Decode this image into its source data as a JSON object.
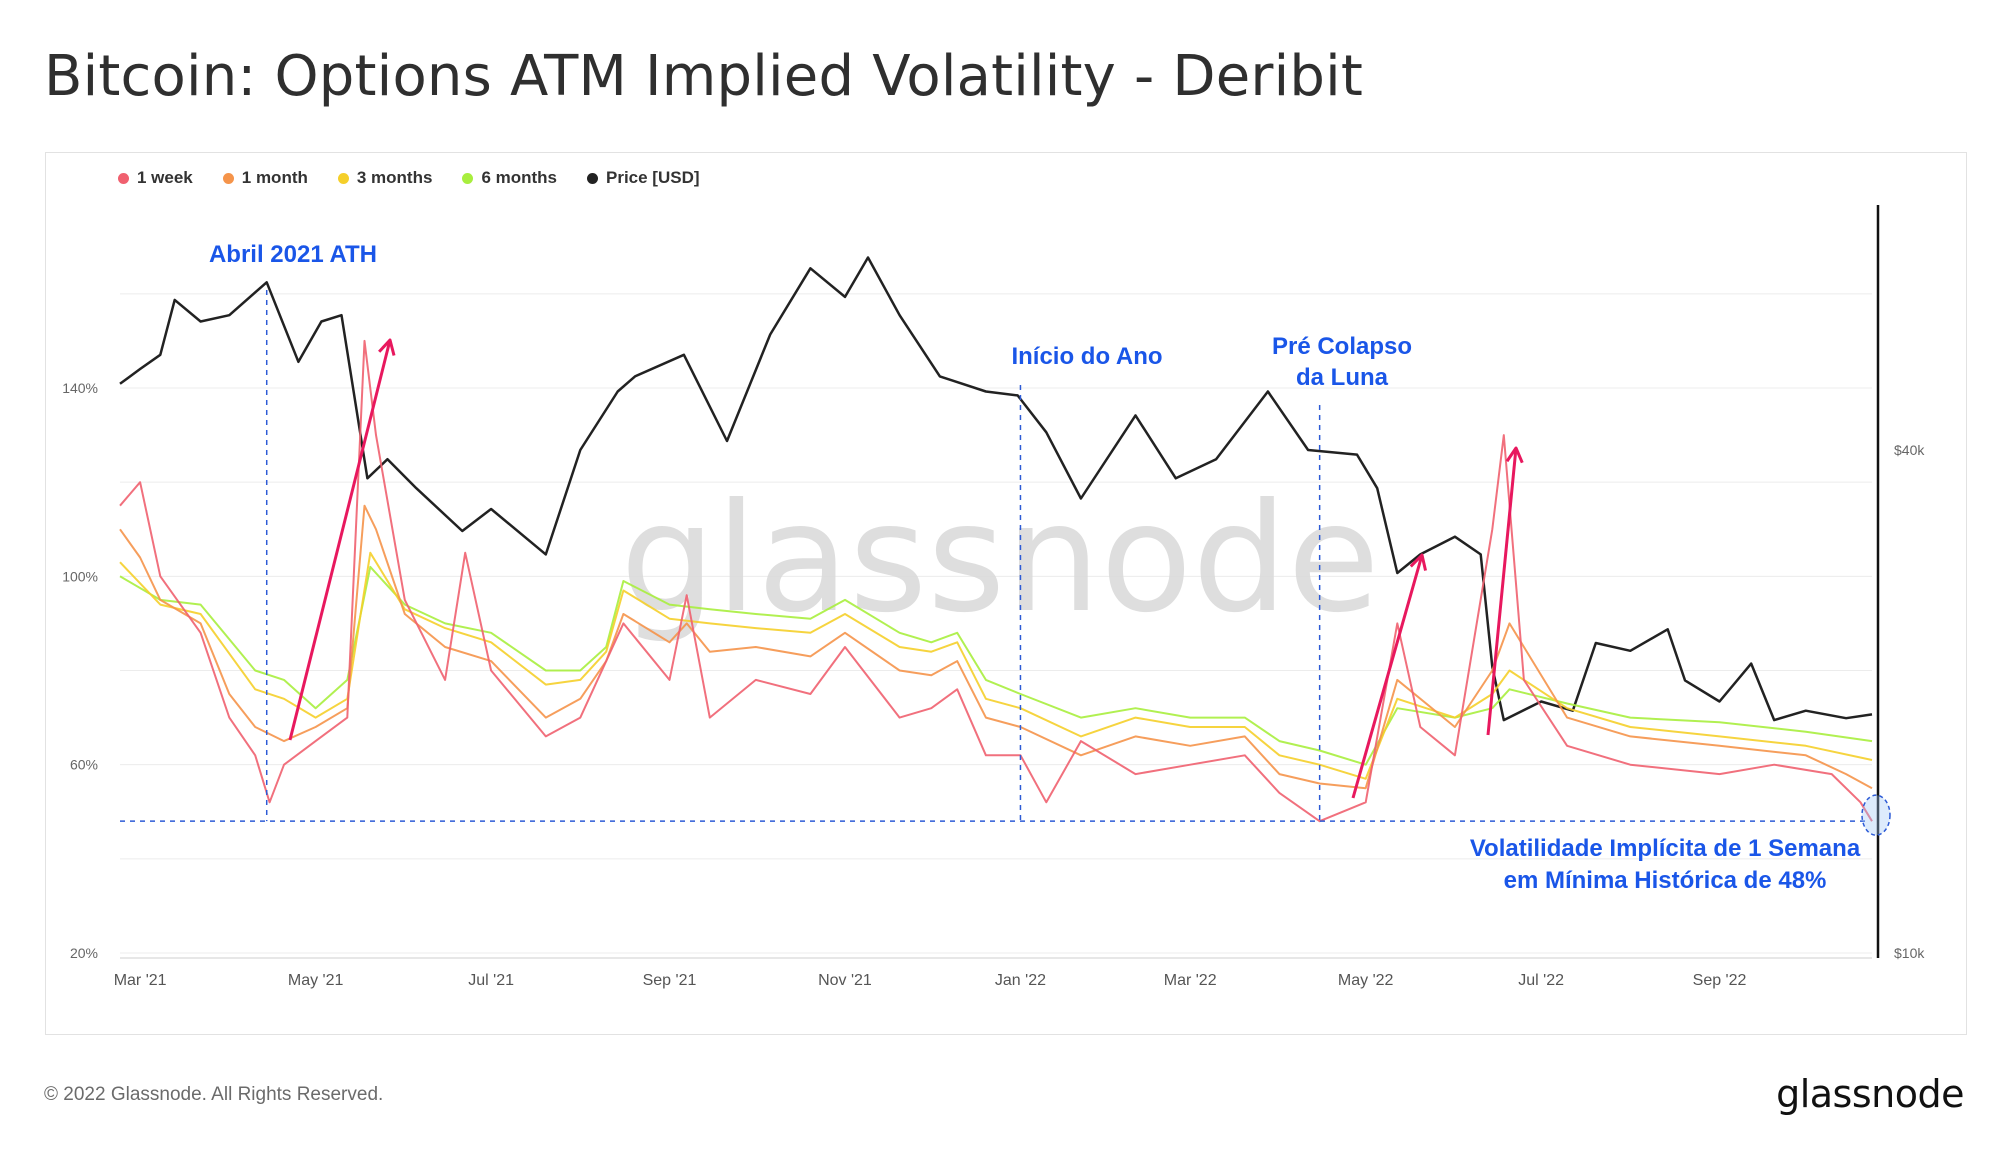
{
  "title": "Bitcoin: Options ATM Implied Volatility - Deribit",
  "footer": {
    "copyright": "© 2022 Glassnode. All Rights Reserved.",
    "logo": "glassnode"
  },
  "watermark": "glassnode",
  "chart_data": {
    "type": "line",
    "legend": [
      {
        "name": "1 week",
        "color": "#f0606f"
      },
      {
        "name": "1 month",
        "color": "#f5944a"
      },
      {
        "name": "3 months",
        "color": "#f5cf2a"
      },
      {
        "name": "6 months",
        "color": "#a8ee3e"
      },
      {
        "name": "Price [USD]",
        "color": "#222222"
      }
    ],
    "left_axis": {
      "ticks": [
        "140%",
        "100%",
        "60%",
        "20%"
      ],
      "values": [
        140,
        100,
        60,
        20
      ],
      "range": [
        20,
        160
      ]
    },
    "right_axis": {
      "ticks": [
        "$40k",
        "$10k"
      ],
      "scale": "log"
    },
    "x_ticks": [
      "Mar '21",
      "May '21",
      "Jul '21",
      "Sep '21",
      "Nov '21",
      "Jan '22",
      "Mar '22",
      "May '22",
      "Jul '22",
      "Sep '22"
    ],
    "x_range": [
      "2021-02-22",
      "2022-10-24"
    ],
    "series": [
      {
        "name": "Price [USD]",
        "color": "#222222",
        "points": [
          [
            "2021-02-22",
            48000
          ],
          [
            "2021-03-01",
            50000
          ],
          [
            "2021-03-08",
            52000
          ],
          [
            "2021-03-13",
            60500
          ],
          [
            "2021-03-22",
            57000
          ],
          [
            "2021-04-01",
            58000
          ],
          [
            "2021-04-14",
            63500
          ],
          [
            "2021-04-25",
            51000
          ],
          [
            "2021-05-03",
            57000
          ],
          [
            "2021-05-10",
            58000
          ],
          [
            "2021-05-19",
            37000
          ],
          [
            "2021-05-26",
            39000
          ],
          [
            "2021-06-05",
            36000
          ],
          [
            "2021-06-21",
            32000
          ],
          [
            "2021-07-01",
            34000
          ],
          [
            "2021-07-20",
            30000
          ],
          [
            "2021-08-01",
            40000
          ],
          [
            "2021-08-14",
            47000
          ],
          [
            "2021-08-20",
            49000
          ],
          [
            "2021-09-06",
            52000
          ],
          [
            "2021-09-21",
            41000
          ],
          [
            "2021-10-06",
            55000
          ],
          [
            "2021-10-20",
            66000
          ],
          [
            "2021-11-01",
            61000
          ],
          [
            "2021-11-09",
            68000
          ],
          [
            "2021-11-20",
            58000
          ],
          [
            "2021-12-04",
            49000
          ],
          [
            "2021-12-20",
            47000
          ],
          [
            "2021-12-31",
            46500
          ],
          [
            "2022-01-10",
            42000
          ],
          [
            "2022-01-22",
            35000
          ],
          [
            "2022-02-10",
            44000
          ],
          [
            "2022-02-24",
            37000
          ],
          [
            "2022-03-10",
            39000
          ],
          [
            "2022-03-28",
            47000
          ],
          [
            "2022-04-11",
            40000
          ],
          [
            "2022-04-28",
            39500
          ],
          [
            "2022-05-05",
            36000
          ],
          [
            "2022-05-12",
            28500
          ],
          [
            "2022-05-20",
            30000
          ],
          [
            "2022-06-01",
            31500
          ],
          [
            "2022-06-10",
            30000
          ],
          [
            "2022-06-14",
            22000
          ],
          [
            "2022-06-18",
            19000
          ],
          [
            "2022-07-01",
            20000
          ],
          [
            "2022-07-12",
            19500
          ],
          [
            "2022-07-20",
            23500
          ],
          [
            "2022-08-01",
            23000
          ],
          [
            "2022-08-14",
            24400
          ],
          [
            "2022-08-20",
            21200
          ],
          [
            "2022-09-01",
            20000
          ],
          [
            "2022-09-12",
            22200
          ],
          [
            "2022-09-20",
            19000
          ],
          [
            "2022-10-01",
            19500
          ],
          [
            "2022-10-15",
            19100
          ],
          [
            "2022-10-24",
            19300
          ]
        ]
      },
      {
        "name": "6 months",
        "color": "#a8ee3e",
        "points": [
          [
            "2021-02-22",
            100
          ],
          [
            "2021-03-08",
            95
          ],
          [
            "2021-03-22",
            94
          ],
          [
            "2021-04-10",
            80
          ],
          [
            "2021-04-20",
            78
          ],
          [
            "2021-05-01",
            72
          ],
          [
            "2021-05-12",
            78
          ],
          [
            "2021-05-20",
            102
          ],
          [
            "2021-06-01",
            94
          ],
          [
            "2021-06-15",
            90
          ],
          [
            "2021-07-01",
            88
          ],
          [
            "2021-07-20",
            80
          ],
          [
            "2021-08-01",
            80
          ],
          [
            "2021-08-10",
            85
          ],
          [
            "2021-08-16",
            99
          ],
          [
            "2021-09-01",
            94
          ],
          [
            "2021-09-15",
            93
          ],
          [
            "2021-10-01",
            92
          ],
          [
            "2021-10-20",
            91
          ],
          [
            "2021-11-01",
            95
          ],
          [
            "2021-11-20",
            88
          ],
          [
            "2021-12-01",
            86
          ],
          [
            "2021-12-10",
            88
          ],
          [
            "2021-12-20",
            78
          ],
          [
            "2022-01-01",
            75
          ],
          [
            "2022-01-22",
            70
          ],
          [
            "2022-02-10",
            72
          ],
          [
            "2022-03-01",
            70
          ],
          [
            "2022-03-20",
            70
          ],
          [
            "2022-04-01",
            65
          ],
          [
            "2022-04-15",
            63
          ],
          [
            "2022-05-01",
            60
          ],
          [
            "2022-05-12",
            72
          ],
          [
            "2022-06-01",
            70
          ],
          [
            "2022-06-14",
            72
          ],
          [
            "2022-06-20",
            76
          ],
          [
            "2022-07-10",
            73
          ],
          [
            "2022-08-01",
            70
          ],
          [
            "2022-09-01",
            69
          ],
          [
            "2022-10-01",
            67
          ],
          [
            "2022-10-24",
            65
          ]
        ]
      },
      {
        "name": "3 months",
        "color": "#f5cf2a",
        "points": [
          [
            "2021-02-22",
            103
          ],
          [
            "2021-03-08",
            94
          ],
          [
            "2021-03-22",
            92
          ],
          [
            "2021-04-10",
            76
          ],
          [
            "2021-04-20",
            74
          ],
          [
            "2021-05-01",
            70
          ],
          [
            "2021-05-12",
            74
          ],
          [
            "2021-05-20",
            105
          ],
          [
            "2021-06-01",
            93
          ],
          [
            "2021-06-15",
            89
          ],
          [
            "2021-07-01",
            86
          ],
          [
            "2021-07-20",
            77
          ],
          [
            "2021-08-01",
            78
          ],
          [
            "2021-08-10",
            84
          ],
          [
            "2021-08-16",
            97
          ],
          [
            "2021-09-01",
            91
          ],
          [
            "2021-09-15",
            90
          ],
          [
            "2021-10-01",
            89
          ],
          [
            "2021-10-20",
            88
          ],
          [
            "2021-11-01",
            92
          ],
          [
            "2021-11-20",
            85
          ],
          [
            "2021-12-01",
            84
          ],
          [
            "2021-12-10",
            86
          ],
          [
            "2021-12-20",
            74
          ],
          [
            "2022-01-01",
            72
          ],
          [
            "2022-01-22",
            66
          ],
          [
            "2022-02-10",
            70
          ],
          [
            "2022-03-01",
            68
          ],
          [
            "2022-03-20",
            68
          ],
          [
            "2022-04-01",
            62
          ],
          [
            "2022-04-15",
            60
          ],
          [
            "2022-05-01",
            57
          ],
          [
            "2022-05-12",
            74
          ],
          [
            "2022-06-01",
            70
          ],
          [
            "2022-06-14",
            75
          ],
          [
            "2022-06-20",
            80
          ],
          [
            "2022-07-10",
            72
          ],
          [
            "2022-08-01",
            68
          ],
          [
            "2022-09-01",
            66
          ],
          [
            "2022-10-01",
            64
          ],
          [
            "2022-10-24",
            61
          ]
        ]
      },
      {
        "name": "1 month",
        "color": "#f5944a",
        "points": [
          [
            "2021-02-22",
            110
          ],
          [
            "2021-03-01",
            104
          ],
          [
            "2021-03-08",
            95
          ],
          [
            "2021-03-22",
            90
          ],
          [
            "2021-04-01",
            75
          ],
          [
            "2021-04-10",
            68
          ],
          [
            "2021-04-20",
            65
          ],
          [
            "2021-05-01",
            68
          ],
          [
            "2021-05-12",
            72
          ],
          [
            "2021-05-18",
            115
          ],
          [
            "2021-05-22",
            110
          ],
          [
            "2021-06-01",
            92
          ],
          [
            "2021-06-15",
            85
          ],
          [
            "2021-07-01",
            82
          ],
          [
            "2021-07-20",
            70
          ],
          [
            "2021-08-01",
            74
          ],
          [
            "2021-08-10",
            82
          ],
          [
            "2021-08-16",
            92
          ],
          [
            "2021-09-01",
            86
          ],
          [
            "2021-09-07",
            90
          ],
          [
            "2021-09-15",
            84
          ],
          [
            "2021-10-01",
            85
          ],
          [
            "2021-10-20",
            83
          ],
          [
            "2021-11-01",
            88
          ],
          [
            "2021-11-20",
            80
          ],
          [
            "2021-12-01",
            79
          ],
          [
            "2021-12-10",
            82
          ],
          [
            "2021-12-20",
            70
          ],
          [
            "2022-01-01",
            68
          ],
          [
            "2022-01-22",
            62
          ],
          [
            "2022-02-10",
            66
          ],
          [
            "2022-03-01",
            64
          ],
          [
            "2022-03-20",
            66
          ],
          [
            "2022-04-01",
            58
          ],
          [
            "2022-04-15",
            56
          ],
          [
            "2022-05-01",
            55
          ],
          [
            "2022-05-12",
            78
          ],
          [
            "2022-06-01",
            68
          ],
          [
            "2022-06-14",
            80
          ],
          [
            "2022-06-20",
            90
          ],
          [
            "2022-07-10",
            70
          ],
          [
            "2022-08-01",
            66
          ],
          [
            "2022-09-01",
            64
          ],
          [
            "2022-10-01",
            62
          ],
          [
            "2022-10-15",
            58
          ],
          [
            "2022-10-24",
            55
          ]
        ]
      },
      {
        "name": "1 week",
        "color": "#f0606f",
        "points": [
          [
            "2021-02-22",
            115
          ],
          [
            "2021-03-01",
            120
          ],
          [
            "2021-03-08",
            100
          ],
          [
            "2021-03-22",
            88
          ],
          [
            "2021-04-01",
            70
          ],
          [
            "2021-04-10",
            62
          ],
          [
            "2021-04-15",
            52
          ],
          [
            "2021-04-20",
            60
          ],
          [
            "2021-05-01",
            65
          ],
          [
            "2021-05-12",
            70
          ],
          [
            "2021-05-18",
            150
          ],
          [
            "2021-05-22",
            130
          ],
          [
            "2021-06-01",
            95
          ],
          [
            "2021-06-15",
            78
          ],
          [
            "2021-06-22",
            105
          ],
          [
            "2021-07-01",
            80
          ],
          [
            "2021-07-20",
            66
          ],
          [
            "2021-08-01",
            70
          ],
          [
            "2021-08-10",
            82
          ],
          [
            "2021-08-16",
            90
          ],
          [
            "2021-09-01",
            78
          ],
          [
            "2021-09-07",
            96
          ],
          [
            "2021-09-15",
            70
          ],
          [
            "2021-10-01",
            78
          ],
          [
            "2021-10-20",
            75
          ],
          [
            "2021-11-01",
            85
          ],
          [
            "2021-11-20",
            70
          ],
          [
            "2021-12-01",
            72
          ],
          [
            "2021-12-10",
            76
          ],
          [
            "2021-12-20",
            62
          ],
          [
            "2022-01-01",
            62
          ],
          [
            "2022-01-10",
            52
          ],
          [
            "2022-01-22",
            65
          ],
          [
            "2022-02-10",
            58
          ],
          [
            "2022-03-01",
            60
          ],
          [
            "2022-03-20",
            62
          ],
          [
            "2022-04-01",
            54
          ],
          [
            "2022-04-15",
            48
          ],
          [
            "2022-05-01",
            52
          ],
          [
            "2022-05-12",
            90
          ],
          [
            "2022-05-20",
            68
          ],
          [
            "2022-06-01",
            62
          ],
          [
            "2022-06-14",
            110
          ],
          [
            "2022-06-18",
            130
          ],
          [
            "2022-06-25",
            78
          ],
          [
            "2022-07-10",
            64
          ],
          [
            "2022-08-01",
            60
          ],
          [
            "2022-09-01",
            58
          ],
          [
            "2022-09-20",
            60
          ],
          [
            "2022-10-10",
            58
          ],
          [
            "2022-10-20",
            52
          ],
          [
            "2022-10-24",
            48
          ]
        ]
      }
    ],
    "annotations": [
      {
        "text": "Abril 2021 ATH",
        "date": "2021-04-14"
      },
      {
        "text": "Início do Ano",
        "date": "2022-01-01"
      },
      {
        "text": "Pré Colapso",
        "text2": "da Luna",
        "date": "2022-04-15"
      },
      {
        "text": "Volatilidade Implícita de 1 Semana",
        "text2": "em Mínima Histórica de  48%",
        "date": "2022-10-24"
      }
    ],
    "reference_level": 48,
    "grid": true
  }
}
